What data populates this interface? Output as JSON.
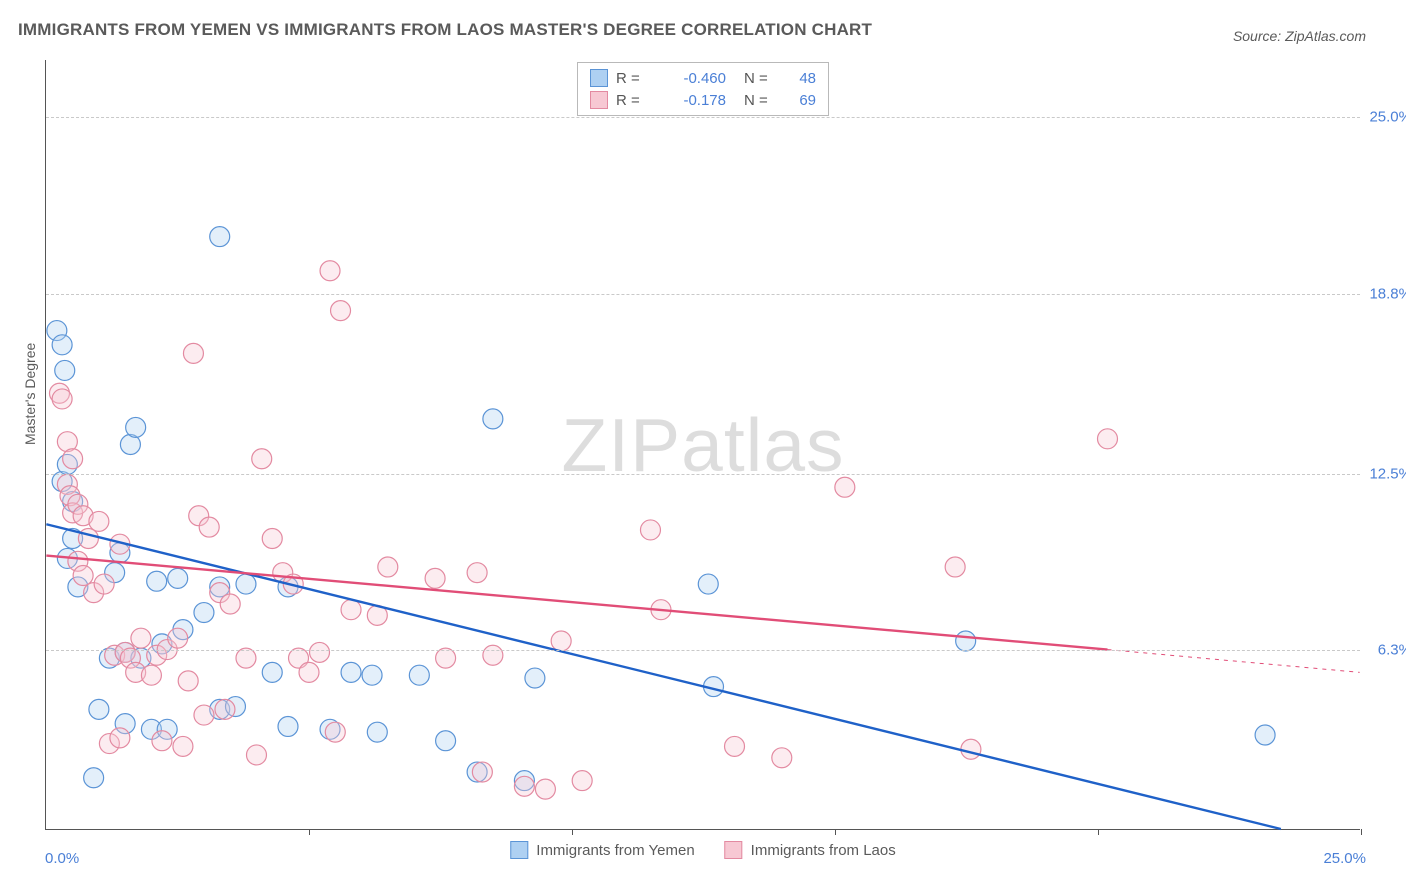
{
  "title": "IMMIGRANTS FROM YEMEN VS IMMIGRANTS FROM LAOS MASTER'S DEGREE CORRELATION CHART",
  "source": "Source: ZipAtlas.com",
  "watermark_a": "ZIP",
  "watermark_b": "atlas",
  "yaxis_title": "Master's Degree",
  "chart": {
    "type": "scatter",
    "background_color": "#ffffff",
    "grid_color": "#c9c9c9",
    "grid_dash": "4,4",
    "axis_color": "#555555",
    "xlim": [
      0,
      25
    ],
    "ylim": [
      0,
      27
    ],
    "y_ticks": [
      {
        "value": 6.3,
        "label": "6.3%"
      },
      {
        "value": 12.5,
        "label": "12.5%"
      },
      {
        "value": 18.8,
        "label": "18.8%"
      },
      {
        "value": 25.0,
        "label": "25.0%"
      }
    ],
    "x_ticks": [
      0,
      5,
      10,
      15,
      20,
      25
    ],
    "x_origin_label": "0.0%",
    "x_max_label": "25.0%",
    "marker_radius": 10,
    "marker_fill_opacity": 0.35,
    "marker_stroke_width": 1.2,
    "line_stroke_width": 2.4,
    "label_color": "#4a7fd6",
    "text_color": "#5a5a5a",
    "title_fontsize": 17,
    "label_fontsize": 15
  },
  "series": [
    {
      "id": "yemen",
      "label": "Immigrants from Yemen",
      "color_fill": "#aed0f2",
      "color_stroke": "#5b94d6",
      "line_color": "#1f61c8",
      "R": "-0.460",
      "N": "48",
      "regression": {
        "x1": 0,
        "y1": 10.7,
        "x2": 23.5,
        "y2": 0
      },
      "points": [
        [
          0.2,
          17.5
        ],
        [
          0.3,
          17.0
        ],
        [
          0.35,
          16.1
        ],
        [
          0.3,
          12.2
        ],
        [
          0.4,
          12.8
        ],
        [
          0.5,
          11.5
        ],
        [
          0.4,
          9.5
        ],
        [
          0.6,
          8.5
        ],
        [
          0.5,
          10.2
        ],
        [
          3.3,
          20.8
        ],
        [
          1.6,
          13.5
        ],
        [
          1.7,
          14.1
        ],
        [
          1.3,
          9.0
        ],
        [
          1.4,
          9.7
        ],
        [
          2.1,
          8.7
        ],
        [
          2.5,
          8.8
        ],
        [
          3.3,
          8.5
        ],
        [
          1.2,
          6.0
        ],
        [
          1.5,
          6.2
        ],
        [
          1.8,
          6.0
        ],
        [
          2.2,
          6.5
        ],
        [
          2.6,
          7.0
        ],
        [
          3.0,
          7.6
        ],
        [
          3.3,
          4.2
        ],
        [
          3.6,
          4.3
        ],
        [
          1.0,
          4.2
        ],
        [
          1.5,
          3.7
        ],
        [
          2.0,
          3.5
        ],
        [
          2.3,
          3.5
        ],
        [
          4.3,
          5.5
        ],
        [
          4.6,
          3.6
        ],
        [
          5.4,
          3.5
        ],
        [
          5.8,
          5.5
        ],
        [
          6.2,
          5.4
        ],
        [
          6.3,
          3.4
        ],
        [
          7.1,
          5.4
        ],
        [
          7.6,
          3.1
        ],
        [
          8.2,
          2.0
        ],
        [
          8.5,
          14.4
        ],
        [
          9.1,
          1.7
        ],
        [
          9.3,
          5.3
        ],
        [
          12.6,
          8.6
        ],
        [
          12.7,
          5.0
        ],
        [
          17.5,
          6.6
        ],
        [
          23.2,
          3.3
        ],
        [
          0.9,
          1.8
        ],
        [
          4.6,
          8.5
        ],
        [
          3.8,
          8.6
        ]
      ]
    },
    {
      "id": "laos",
      "label": "Immigrants from Laos",
      "color_fill": "#f7c8d3",
      "color_stroke": "#e38aa1",
      "line_color": "#e14d77",
      "R": "-0.178",
      "N": "69",
      "regression": {
        "x1": 0,
        "y1": 9.6,
        "x2": 20.2,
        "y2": 6.3
      },
      "regression_dash": {
        "x1": 20.2,
        "y1": 6.3,
        "x2": 25,
        "y2": 5.5
      },
      "points": [
        [
          0.25,
          15.3
        ],
        [
          0.3,
          15.1
        ],
        [
          0.4,
          13.6
        ],
        [
          0.5,
          13.0
        ],
        [
          0.4,
          12.1
        ],
        [
          0.45,
          11.7
        ],
        [
          0.5,
          11.1
        ],
        [
          0.6,
          11.4
        ],
        [
          0.7,
          11.0
        ],
        [
          0.8,
          10.2
        ],
        [
          0.6,
          9.4
        ],
        [
          0.7,
          8.9
        ],
        [
          0.9,
          8.3
        ],
        [
          1.1,
          8.6
        ],
        [
          1.0,
          10.8
        ],
        [
          1.4,
          10.0
        ],
        [
          1.3,
          6.1
        ],
        [
          1.5,
          6.2
        ],
        [
          1.6,
          6.0
        ],
        [
          1.8,
          6.7
        ],
        [
          1.7,
          5.5
        ],
        [
          2.0,
          5.4
        ],
        [
          2.1,
          6.1
        ],
        [
          2.3,
          6.3
        ],
        [
          2.5,
          6.7
        ],
        [
          2.7,
          5.2
        ],
        [
          2.2,
          3.1
        ],
        [
          2.6,
          2.9
        ],
        [
          1.2,
          3.0
        ],
        [
          1.4,
          3.2
        ],
        [
          2.8,
          16.7
        ],
        [
          2.9,
          11.0
        ],
        [
          3.1,
          10.6
        ],
        [
          3.3,
          8.3
        ],
        [
          3.5,
          7.9
        ],
        [
          3.0,
          4.0
        ],
        [
          3.4,
          4.2
        ],
        [
          3.8,
          6.0
        ],
        [
          4.1,
          13.0
        ],
        [
          4.3,
          10.2
        ],
        [
          4.5,
          9.0
        ],
        [
          4.7,
          8.6
        ],
        [
          4.8,
          6.0
        ],
        [
          5.0,
          5.5
        ],
        [
          5.2,
          6.2
        ],
        [
          5.4,
          19.6
        ],
        [
          5.5,
          3.4
        ],
        [
          5.6,
          18.2
        ],
        [
          5.8,
          7.7
        ],
        [
          6.3,
          7.5
        ],
        [
          6.5,
          9.2
        ],
        [
          7.4,
          8.8
        ],
        [
          7.6,
          6.0
        ],
        [
          8.2,
          9.0
        ],
        [
          8.3,
          2.0
        ],
        [
          8.5,
          6.1
        ],
        [
          9.1,
          1.5
        ],
        [
          9.5,
          1.4
        ],
        [
          9.8,
          6.6
        ],
        [
          10.2,
          1.7
        ],
        [
          11.5,
          10.5
        ],
        [
          11.7,
          7.7
        ],
        [
          13.1,
          2.9
        ],
        [
          14.0,
          2.5
        ],
        [
          15.2,
          12.0
        ],
        [
          17.3,
          9.2
        ],
        [
          17.6,
          2.8
        ],
        [
          20.2,
          13.7
        ],
        [
          4.0,
          2.6
        ]
      ]
    }
  ]
}
